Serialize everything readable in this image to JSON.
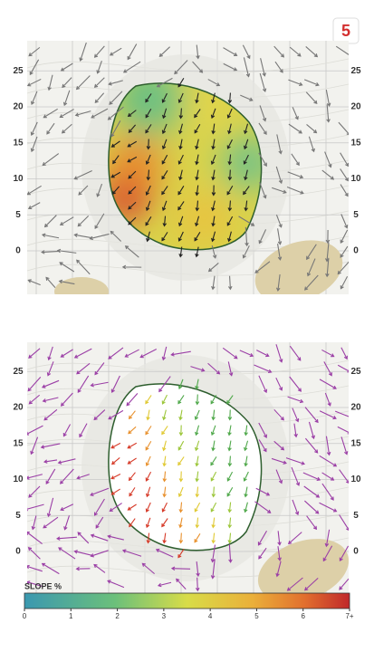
{
  "hole": "5",
  "top_map": {
    "yticks": [
      25,
      20,
      15,
      10,
      5,
      0
    ]
  },
  "bottom_map": {
    "yticks": [
      25,
      20,
      15,
      10,
      5,
      0
    ]
  },
  "legend": {
    "title": "SLOPE %",
    "ticks": [
      0,
      1,
      2,
      3,
      4,
      5,
      6,
      {
        "value": 7,
        "label": "7+"
      }
    ]
  }
}
